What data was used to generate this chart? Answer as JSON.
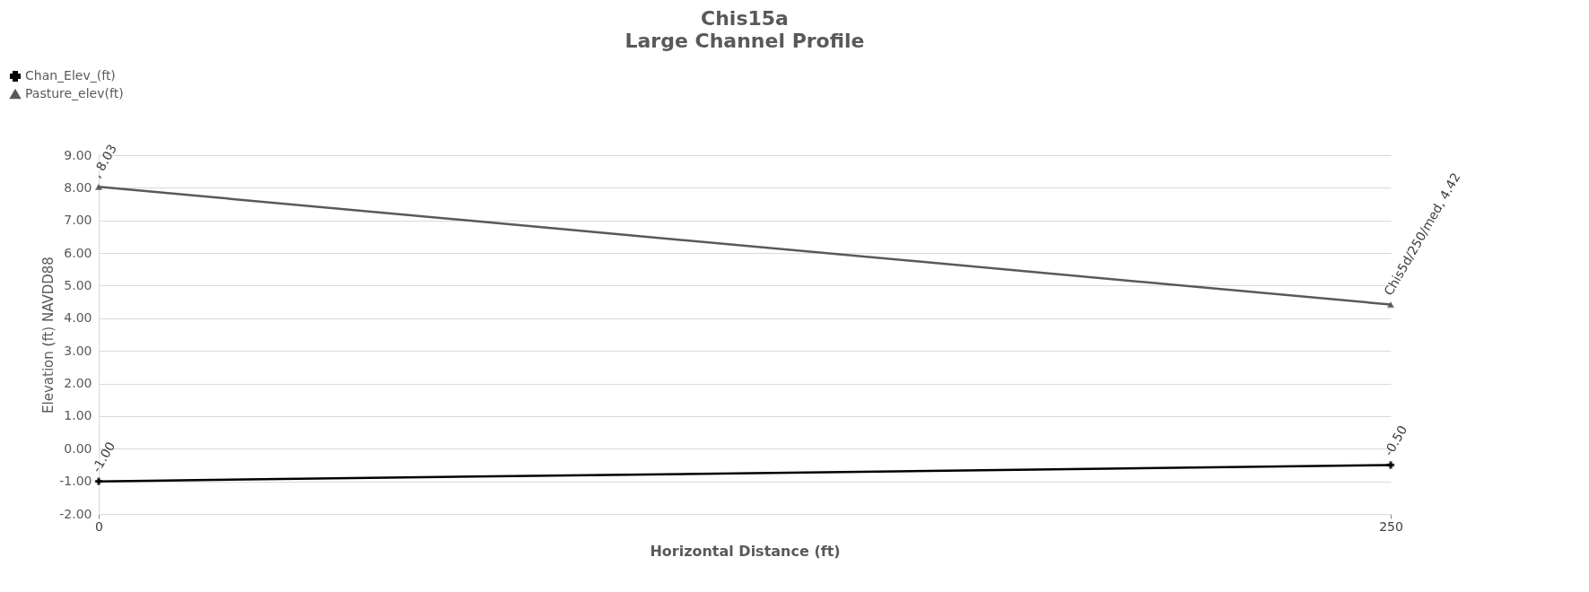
{
  "chart_data": {
    "type": "line",
    "title": "Chis15a",
    "subtitle": "Large Channel Profile",
    "xlabel": "Horizontal Distance (ft)",
    "ylabel": "Elevation (ft) NAVDD88",
    "x": [
      0,
      250
    ],
    "xlim": [
      0,
      250
    ],
    "xticks": [
      0,
      250
    ],
    "ylim": [
      -2,
      9
    ],
    "yticks": [
      {
        "value": -2,
        "label": "-2.00"
      },
      {
        "value": -1,
        "label": "-1.00"
      },
      {
        "value": 0,
        "label": "0.00"
      },
      {
        "value": 1,
        "label": "1.00"
      },
      {
        "value": 2,
        "label": "2.00"
      },
      {
        "value": 3,
        "label": "3.00"
      },
      {
        "value": 4,
        "label": "4.00"
      },
      {
        "value": 5,
        "label": "5.00"
      },
      {
        "value": 6,
        "label": "6.00"
      },
      {
        "value": 7,
        "label": "7.00"
      },
      {
        "value": 8,
        "label": "8.00"
      },
      {
        "value": 9,
        "label": "9.00"
      }
    ],
    "grid": "y",
    "legend": "top left",
    "series": [
      {
        "name": "Chan_Elev_(ft)",
        "color": "#000000",
        "marker": "cross",
        "values": [
          -1.0,
          -0.5
        ],
        "value_labels": [
          "-1.00",
          "-0.50"
        ]
      },
      {
        "name": "Pasture_elev(ft)",
        "color": "#595959",
        "marker": "triangle",
        "values": [
          8.03,
          4.42
        ],
        "value_labels": [
          ", 8.03",
          "Chis5d/250/med, 4.42"
        ]
      }
    ]
  }
}
